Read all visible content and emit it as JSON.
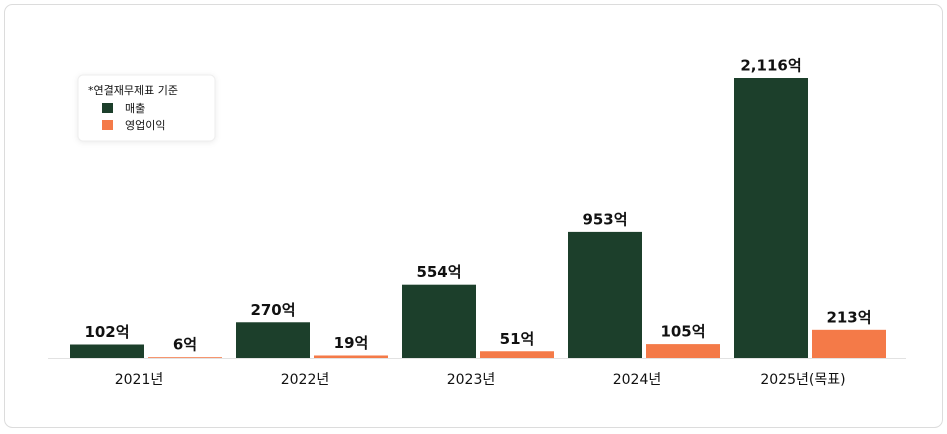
{
  "chart_data": {
    "type": "bar",
    "legend_title": "*연결재무제표 기준",
    "categories": [
      "2021년",
      "2022년",
      "2023년",
      "2024년",
      "2025년(목표)"
    ],
    "series": [
      {
        "name": "매출",
        "color": "#1c3f2b",
        "values": [
          102,
          270,
          554,
          953,
          2116
        ],
        "value_labels": [
          "102억",
          "270억",
          "554억",
          "953억",
          "2,116억"
        ]
      },
      {
        "name": "영업이익",
        "color": "#f47a48",
        "values": [
          6,
          19,
          51,
          105,
          213
        ],
        "value_labels": [
          "6억",
          "19억",
          "51억",
          "105억",
          "213억"
        ]
      }
    ],
    "legend": "upper left"
  }
}
